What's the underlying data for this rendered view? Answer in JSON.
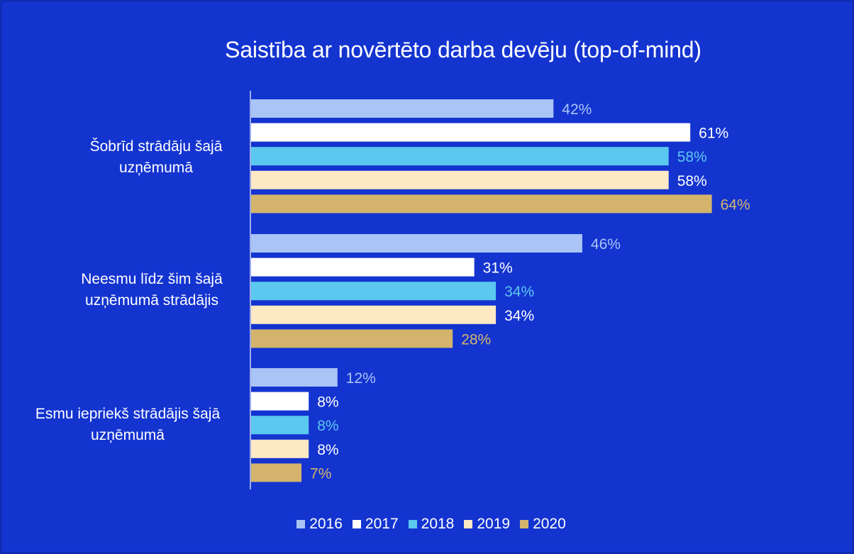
{
  "chart_data": {
    "type": "bar",
    "orientation": "horizontal",
    "title": "Saistība ar novērtēto darba devēju (top-of-mind)",
    "categories": [
      "Šobrīd strādāju šajā uzņēmumā",
      "Neesmu līdz šim šajā uzņēmumā strādājis",
      "Esmu iepriekš strādājis šajā uzņēmumā"
    ],
    "category_lines": [
      [
        "Šobrīd strādāju šajā",
        "uzņēmumā"
      ],
      [
        "Neesmu līdz šim šajā",
        "uzņēmumā strādājis"
      ],
      [
        "Esmu iepriekš strādājis šajā",
        "uzņēmumā"
      ]
    ],
    "series": [
      {
        "name": "2016",
        "color": "#a9c4f5",
        "label_color": "#a9c4f5",
        "values": [
          42,
          46,
          12
        ]
      },
      {
        "name": "2017",
        "color": "#ffffff",
        "label_color": "#ffffff",
        "values": [
          61,
          31,
          8
        ]
      },
      {
        "name": "2018",
        "color": "#5bc8ef",
        "label_color": "#5bc8ef",
        "values": [
          58,
          34,
          8
        ]
      },
      {
        "name": "2019",
        "color": "#fde9c4",
        "label_color": "#ffffff",
        "values": [
          58,
          34,
          8
        ]
      },
      {
        "name": "2020",
        "color": "#d4b46c",
        "label_color": "#d4b46c",
        "values": [
          64,
          28,
          7
        ]
      }
    ],
    "value_suffix": "%",
    "xlim": [
      0,
      100
    ],
    "grid": false,
    "legend_position": "bottom"
  }
}
